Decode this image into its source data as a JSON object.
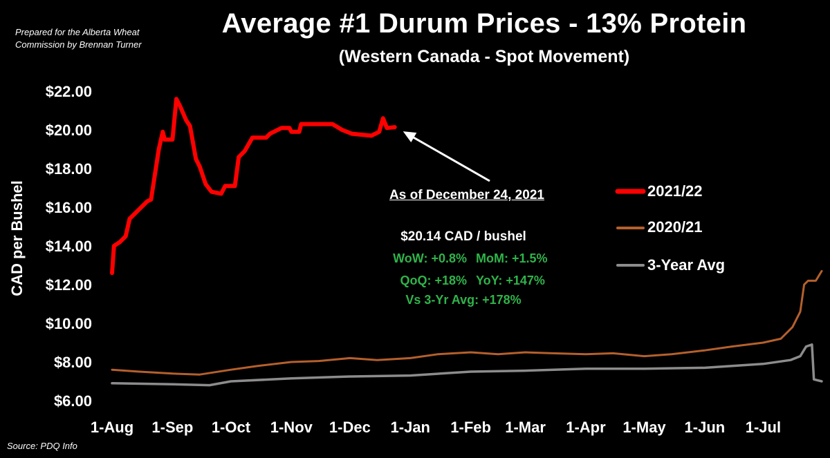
{
  "header": {
    "credit_line1": "Prepared for the Alberta Wheat",
    "credit_line2": "Commission by Brennan Turner",
    "title": "Average #1 Durum Prices - 13% Protein",
    "subtitle": "(Western Canada - Spot Movement)"
  },
  "footer": {
    "source": "Source: PDQ Info"
  },
  "annotation": {
    "as_of": "As of December 24, 2021",
    "price": "$20.14 CAD / bushel",
    "wow": "WoW: +0.8%",
    "mom": "MoM: +1.5%",
    "qoq": "QoQ: +18%",
    "yoy": "YoY: +147%",
    "vs3yr": "Vs 3-Yr Avg: +178%"
  },
  "colors": {
    "s2122": "#ff0000",
    "s2021": "#b5602c",
    "s3yr": "#8c8c8c",
    "green_text": "#2fb34a"
  },
  "chart_data": {
    "type": "line",
    "title": "Average #1 Durum Prices - 13% Protein",
    "subtitle": "(Western Canada - Spot Movement)",
    "ylabel": "CAD per Bushel",
    "xlabel": "",
    "ylim": [
      6,
      22
    ],
    "yticks": [
      "$6.00",
      "$8.00",
      "$10.00",
      "$12.00",
      "$14.00",
      "$16.00",
      "$18.00",
      "$20.00",
      "$22.00"
    ],
    "xticks": [
      "1-Aug",
      "1-Sep",
      "1-Oct",
      "1-Nov",
      "1-Dec",
      "1-Jan",
      "1-Feb",
      "1-Mar",
      "1-Apr",
      "1-May",
      "1-Jun",
      "1-Jul"
    ],
    "legend_position": "right",
    "grid": false,
    "series": [
      {
        "name": "2021/22",
        "points": [
          [
            "1-Aug",
            12.6
          ],
          [
            "2-Aug",
            14.0
          ],
          [
            "5-Aug",
            14.2
          ],
          [
            "8-Aug",
            14.5
          ],
          [
            "10-Aug",
            15.4
          ],
          [
            "15-Aug",
            15.9
          ],
          [
            "19-Aug",
            16.3
          ],
          [
            "21-Aug",
            16.4
          ],
          [
            "25-Aug",
            19.0
          ],
          [
            "27-Aug",
            19.9
          ],
          [
            "28-Aug",
            19.5
          ],
          [
            "1-Sep",
            19.5
          ],
          [
            "3-Sep",
            21.6
          ],
          [
            "5-Sep",
            21.2
          ],
          [
            "8-Sep",
            20.5
          ],
          [
            "10-Sep",
            20.2
          ],
          [
            "13-Sep",
            18.5
          ],
          [
            "15-Sep",
            18.1
          ],
          [
            "18-Sep",
            17.2
          ],
          [
            "21-Sep",
            16.8
          ],
          [
            "26-Sep",
            16.7
          ],
          [
            "28-Sep",
            17.1
          ],
          [
            "3-Oct",
            17.1
          ],
          [
            "5-Oct",
            18.6
          ],
          [
            "8-Oct",
            18.9
          ],
          [
            "12-Oct",
            19.6
          ],
          [
            "19-Oct",
            19.6
          ],
          [
            "21-Oct",
            19.8
          ],
          [
            "27-Oct",
            20.1
          ],
          [
            "31-Oct",
            20.1
          ],
          [
            "1-Nov",
            19.9
          ],
          [
            "5-Nov",
            19.9
          ],
          [
            "6-Nov",
            20.3
          ],
          [
            "22-Nov",
            20.3
          ],
          [
            "27-Nov",
            20.0
          ],
          [
            "2-Dec",
            19.8
          ],
          [
            "12-Dec",
            19.7
          ],
          [
            "16-Dec",
            19.9
          ],
          [
            "18-Dec",
            20.6
          ],
          [
            "20-Dec",
            20.1
          ],
          [
            "24-Dec",
            20.14
          ]
        ]
      },
      {
        "name": "2020/21",
        "points": [
          [
            "1-Aug",
            7.6
          ],
          [
            "15-Aug",
            7.5
          ],
          [
            "1-Sep",
            7.4
          ],
          [
            "15-Sep",
            7.35
          ],
          [
            "1-Oct",
            7.6
          ],
          [
            "15-Oct",
            7.8
          ],
          [
            "1-Nov",
            8.0
          ],
          [
            "15-Nov",
            8.05
          ],
          [
            "1-Dec",
            8.2
          ],
          [
            "15-Dec",
            8.1
          ],
          [
            "1-Jan",
            8.2
          ],
          [
            "15-Jan",
            8.4
          ],
          [
            "1-Feb",
            8.5
          ],
          [
            "15-Feb",
            8.4
          ],
          [
            "1-Mar",
            8.5
          ],
          [
            "15-Mar",
            8.45
          ],
          [
            "1-Apr",
            8.4
          ],
          [
            "15-Apr",
            8.45
          ],
          [
            "1-May",
            8.3
          ],
          [
            "15-May",
            8.4
          ],
          [
            "1-Jun",
            8.6
          ],
          [
            "15-Jun",
            8.8
          ],
          [
            "1-Jul",
            9.0
          ],
          [
            "10-Jul",
            9.2
          ],
          [
            "16-Jul",
            9.8
          ],
          [
            "20-Jul",
            10.6
          ],
          [
            "22-Jul",
            12.0
          ],
          [
            "24-Jul",
            12.2
          ],
          [
            "28-Jul",
            12.2
          ],
          [
            "31-Jul",
            12.7
          ]
        ]
      },
      {
        "name": "3-Year Avg",
        "points": [
          [
            "1-Aug",
            6.9
          ],
          [
            "1-Sep",
            6.85
          ],
          [
            "20-Sep",
            6.8
          ],
          [
            "1-Oct",
            7.0
          ],
          [
            "1-Nov",
            7.15
          ],
          [
            "1-Dec",
            7.25
          ],
          [
            "1-Jan",
            7.3
          ],
          [
            "1-Feb",
            7.5
          ],
          [
            "1-Mar",
            7.55
          ],
          [
            "1-Apr",
            7.65
          ],
          [
            "1-May",
            7.65
          ],
          [
            "1-Jun",
            7.7
          ],
          [
            "1-Jul",
            7.9
          ],
          [
            "15-Jul",
            8.1
          ],
          [
            "20-Jul",
            8.3
          ],
          [
            "23-Jul",
            8.8
          ],
          [
            "26-Jul",
            8.9
          ],
          [
            "27-Jul",
            7.1
          ],
          [
            "31-Jul",
            7.0
          ]
        ]
      }
    ]
  }
}
